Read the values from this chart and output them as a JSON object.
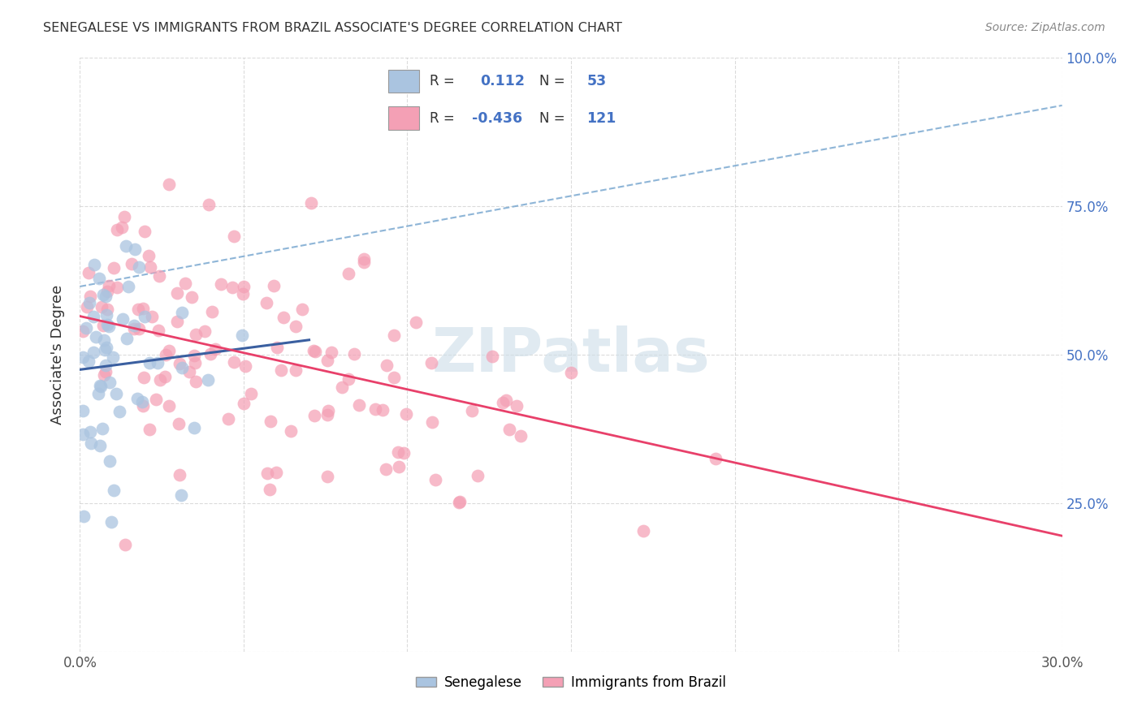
{
  "title": "SENEGALESE VS IMMIGRANTS FROM BRAZIL ASSOCIATE'S DEGREE CORRELATION CHART",
  "source": "Source: ZipAtlas.com",
  "ylabel": "Associate's Degree",
  "x_min": 0.0,
  "x_max": 0.3,
  "y_min": 0.0,
  "y_max": 1.0,
  "x_ticks": [
    0.0,
    0.05,
    0.1,
    0.15,
    0.2,
    0.25,
    0.3
  ],
  "x_tick_labels": [
    "0.0%",
    "",
    "",
    "",
    "",
    "",
    "30.0%"
  ],
  "y_ticks": [
    0.0,
    0.25,
    0.5,
    0.75,
    1.0
  ],
  "y_tick_labels_right": [
    "",
    "25.0%",
    "50.0%",
    "75.0%",
    "100.0%"
  ],
  "color_blue": "#aac4e0",
  "color_pink": "#f4a0b5",
  "line_blue": "#3a5fa0",
  "line_pink": "#e8406a",
  "line_dashed_color": "#7aa8d0",
  "watermark_color": "#ccdde8",
  "background": "#ffffff",
  "grid_color": "#cccccc",
  "sen_line_x0": 0.0,
  "sen_line_y0": 0.475,
  "sen_line_x1": 0.07,
  "sen_line_y1": 0.525,
  "bra_line_x0": 0.0,
  "bra_line_y0": 0.565,
  "bra_line_x1": 0.3,
  "bra_line_y1": 0.195,
  "dash_line_x0": 0.0,
  "dash_line_y0": 0.615,
  "dash_line_x1": 0.3,
  "dash_line_y1": 0.92
}
